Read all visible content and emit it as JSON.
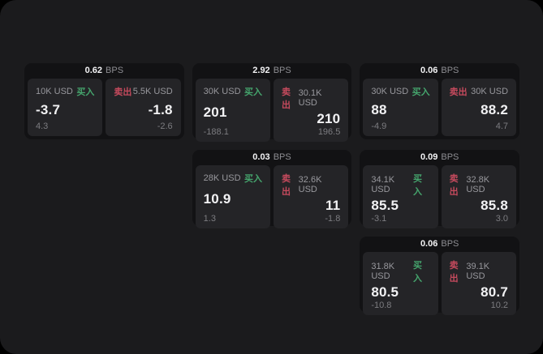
{
  "labels": {
    "bps": "BPS",
    "buy": "买入",
    "sell": "卖出"
  },
  "colors": {
    "background": "#000000",
    "panel_bg": "#1b1b1d",
    "card_bg": "#121214",
    "tile_bg": "#242427",
    "text_bright": "#f2f2f4",
    "text_mid": "#98989d",
    "text_sub": "#7c7c80",
    "text_dim": "#8e8e93",
    "buy": "#45a56d",
    "sell": "#c54a5d"
  },
  "cards": [
    {
      "row": 1,
      "col": 1,
      "bps": "0.62",
      "buy": {
        "amount": "10K USD",
        "price": "-3.7",
        "sub": "4.3"
      },
      "sell": {
        "amount": "5.5K USD",
        "price": "-1.8",
        "sub": "-2.6"
      }
    },
    {
      "row": 1,
      "col": 2,
      "bps": "2.92",
      "buy": {
        "amount": "30K USD",
        "price": "201",
        "sub": "-188.1"
      },
      "sell": {
        "amount": "30.1K USD",
        "price": "210",
        "sub": "196.5"
      }
    },
    {
      "row": 1,
      "col": 3,
      "bps": "0.06",
      "buy": {
        "amount": "30K USD",
        "price": "88",
        "sub": "-4.9"
      },
      "sell": {
        "amount": "30K USD",
        "price": "88.2",
        "sub": "4.7"
      }
    },
    {
      "row": 2,
      "col": 2,
      "bps": "0.03",
      "buy": {
        "amount": "28K USD",
        "price": "10.9",
        "sub": "1.3"
      },
      "sell": {
        "amount": "32.6K USD",
        "price": "11",
        "sub": "-1.8"
      }
    },
    {
      "row": 2,
      "col": 3,
      "bps": "0.09",
      "buy": {
        "amount": "34.1K USD",
        "price": "85.5",
        "sub": "-3.1"
      },
      "sell": {
        "amount": "32.8K USD",
        "price": "85.8",
        "sub": "3.0"
      }
    },
    {
      "row": 3,
      "col": 3,
      "bps": "0.06",
      "buy": {
        "amount": "31.8K USD",
        "price": "80.5",
        "sub": "-10.8"
      },
      "sell": {
        "amount": "39.1K USD",
        "price": "80.7",
        "sub": "10.2"
      }
    }
  ]
}
